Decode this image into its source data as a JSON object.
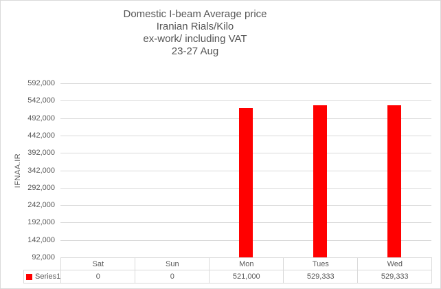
{
  "chart_data": {
    "type": "bar",
    "title_lines": [
      "Domestic I-beam Average price",
      "Iranian Rials/Kilo",
      "ex-work/ including VAT",
      "23-27 Aug"
    ],
    "ylabel": "IFNAA.IR",
    "xlabel": "",
    "categories": [
      "Sat",
      "Sun",
      "Mon",
      "Tues",
      "Wed"
    ],
    "series": [
      {
        "name": "Series1",
        "color": "#ff0000",
        "values": [
          0,
          0,
          521000,
          529333,
          529333
        ],
        "value_labels": [
          "0",
          "0",
          "521,000",
          "529,333",
          "529,333"
        ]
      }
    ],
    "y_axis": {
      "min": 92000,
      "max": 592000,
      "step": 50000,
      "tick_labels": [
        "592,000",
        "542,000",
        "492,000",
        "442,000",
        "392,000",
        "342,000",
        "292,000",
        "242,000",
        "192,000",
        "142,000",
        "92,000"
      ]
    },
    "grid": true,
    "data_table": true,
    "legend": {
      "position": "data-table-left",
      "entries": [
        "Series1"
      ]
    },
    "colors": {
      "bar": "#ff0000",
      "gridline": "#d9d9d9",
      "table_border": "#d9d9d9",
      "text": "#595959"
    }
  }
}
